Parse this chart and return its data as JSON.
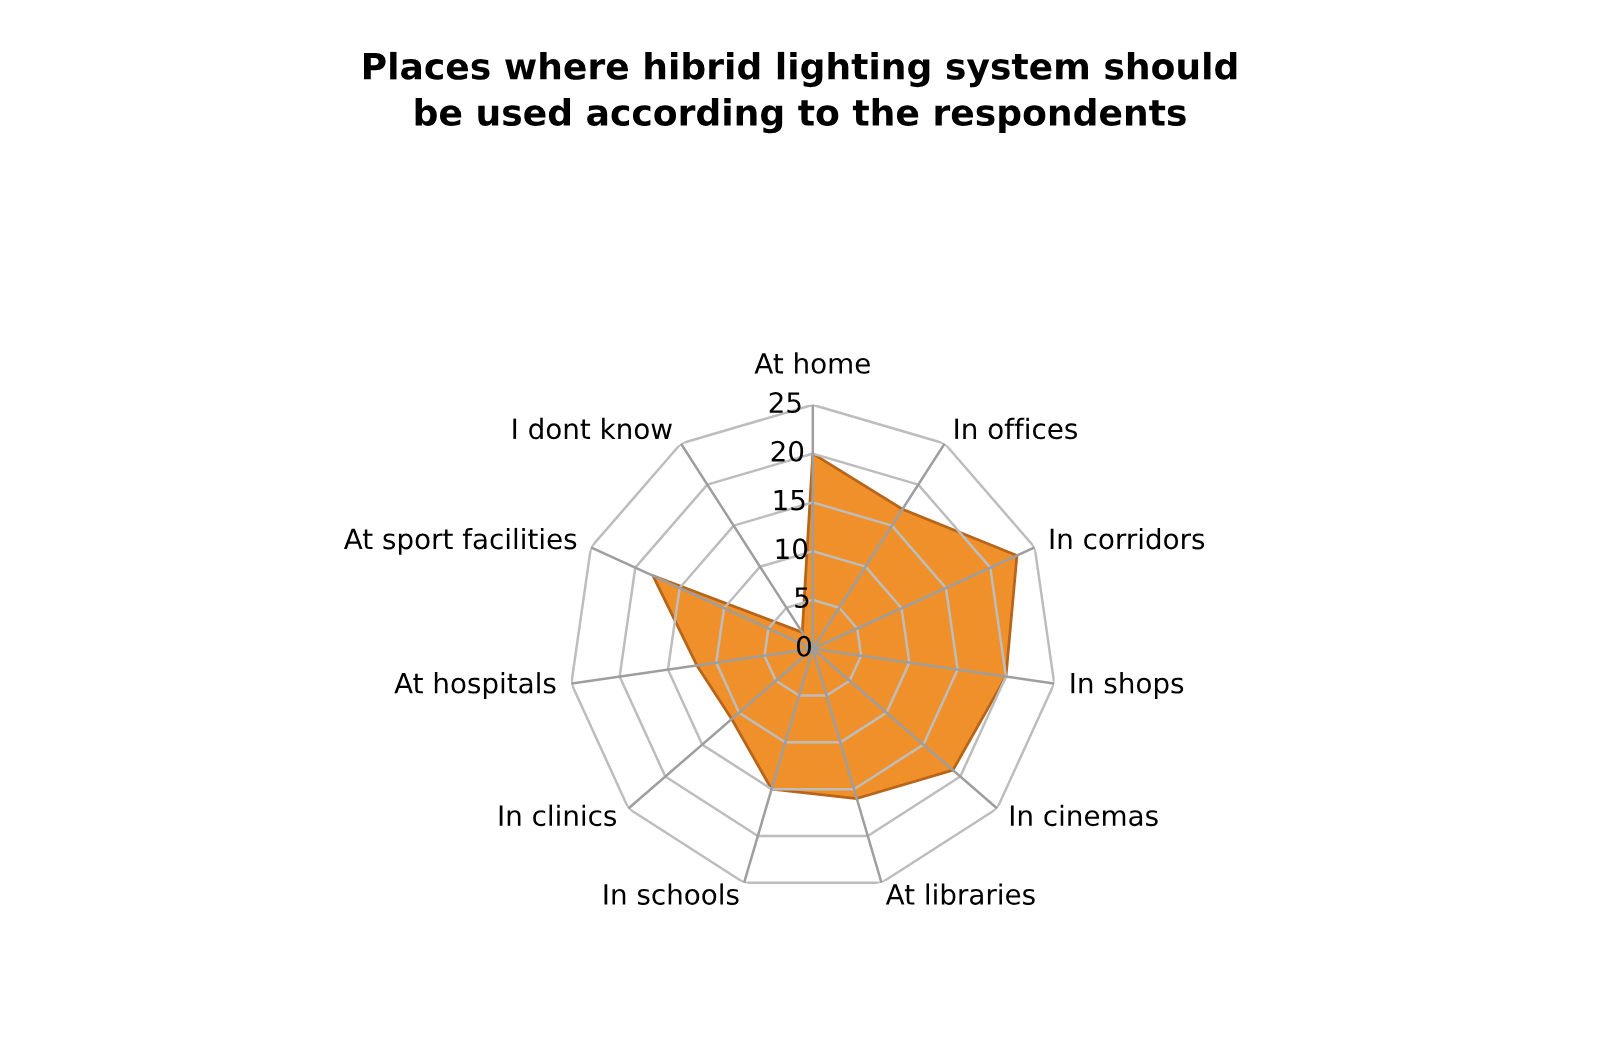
{
  "chart_data": {
    "type": "radar",
    "title": "Places where hibrid lighting system should be used according to the respondents",
    "categories": [
      "At home",
      "In offices",
      "In corridors",
      "In shops",
      "In cinemas",
      "At libraries",
      "In schools",
      "In clinics",
      "At hospitals",
      "At sport facilities",
      "I dont know"
    ],
    "series": [
      {
        "color": "#f0902a",
        "values": [
          20,
          17,
          23,
          20,
          19,
          16,
          15,
          11,
          12,
          18,
          2
        ]
      }
    ],
    "ylim": [
      0,
      25
    ],
    "yticks": [
      0,
      5,
      10,
      15,
      20,
      25
    ],
    "grid": true
  }
}
